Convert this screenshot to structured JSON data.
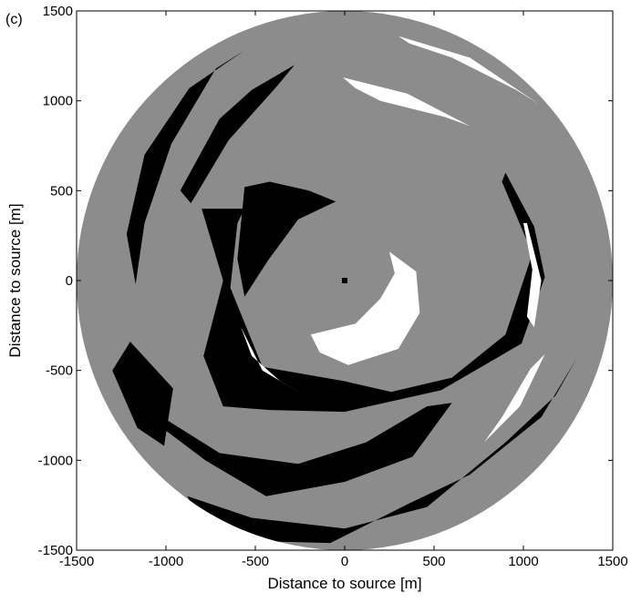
{
  "panel_label": "(c)",
  "colors": {
    "background": "#ffffff",
    "disk": "#8c8c8c",
    "dark_region": "#000000",
    "light_region": "#ffffff"
  },
  "chart_data": {
    "type": "heatmap",
    "title": "",
    "xlabel": "Distance to source [m]",
    "ylabel": "Distance to source [m]",
    "xlim": [
      -1500,
      1500
    ],
    "ylim": [
      -1500,
      1500
    ],
    "xticks": [
      -1500,
      -1000,
      -500,
      0,
      500,
      1000,
      1500
    ],
    "yticks": [
      -1500,
      -1000,
      -500,
      0,
      500,
      1000,
      1500
    ],
    "xtick_labels": [
      "-1500",
      "-1000",
      "-500",
      "0",
      "500",
      "1000",
      "1500"
    ],
    "ytick_labels": [
      "-1500",
      "-1000",
      "-500",
      "0",
      "500",
      "1000",
      "1500"
    ],
    "grid": false,
    "disk": {
      "center": [
        0,
        0
      ],
      "radius": 1500
    },
    "source_marker": [
      0,
      0
    ],
    "regions": [
      {
        "class": "black",
        "points": [
          [
            -1220,
            260
          ],
          [
            -1120,
            700
          ],
          [
            -870,
            1070
          ],
          [
            -560,
            1280
          ],
          [
            -720,
            1180
          ],
          [
            -970,
            760
          ],
          [
            -1120,
            320
          ],
          [
            -1170,
            -20
          ]
        ]
      },
      {
        "class": "black",
        "points": [
          [
            -920,
            500
          ],
          [
            -700,
            900
          ],
          [
            -520,
            1060
          ],
          [
            -280,
            1200
          ],
          [
            -380,
            1080
          ],
          [
            -650,
            780
          ],
          [
            -860,
            430
          ]
        ]
      },
      {
        "class": "black",
        "points": [
          [
            -560,
            520
          ],
          [
            -420,
            550
          ],
          [
            -200,
            500
          ],
          [
            -50,
            440
          ],
          [
            -260,
            340
          ],
          [
            -430,
            110
          ],
          [
            -560,
            -90
          ],
          [
            -600,
            120
          ]
        ]
      },
      {
        "class": "black",
        "points": [
          [
            -680,
            -2e-17
          ],
          [
            -790,
            -420
          ],
          [
            -680,
            -700
          ],
          [
            -420,
            -720
          ],
          [
            0,
            -730
          ],
          [
            540,
            -610
          ],
          [
            990,
            -350
          ],
          [
            1120,
            20
          ],
          [
            1060,
            300
          ],
          [
            900,
            600
          ],
          [
            880,
            550
          ],
          [
            1050,
            150
          ],
          [
            900,
            -300
          ],
          [
            600,
            -540
          ],
          [
            260,
            -620
          ],
          [
            0,
            -560
          ],
          [
            -460,
            -480
          ],
          [
            -640,
            -40
          ],
          [
            -600,
            320
          ],
          [
            -560,
            400
          ],
          [
            -800,
            400
          ]
        ]
      },
      {
        "class": "black",
        "points": [
          [
            -1240,
            -400
          ],
          [
            -1020,
            -760
          ],
          [
            -700,
            -960
          ],
          [
            -260,
            -1020
          ],
          [
            120,
            -900
          ],
          [
            460,
            -700
          ],
          [
            600,
            -680
          ],
          [
            380,
            -980
          ],
          [
            0,
            -1120
          ],
          [
            -440,
            -1200
          ],
          [
            -780,
            -1000
          ],
          [
            -1100,
            -760
          ]
        ]
      },
      {
        "class": "black",
        "points": [
          [
            -880,
            -1200
          ],
          [
            -520,
            -1320
          ],
          [
            0,
            -1380
          ],
          [
            460,
            -1260
          ],
          [
            900,
            -900
          ],
          [
            1180,
            -640
          ],
          [
            1300,
            -430
          ],
          [
            1100,
            -760
          ],
          [
            700,
            -1080
          ],
          [
            360,
            -1240
          ],
          [
            -80,
            -1460
          ],
          [
            -480,
            -1450
          ],
          [
            -820,
            -1320
          ]
        ]
      },
      {
        "class": "black",
        "points": [
          [
            -1300,
            -500
          ],
          [
            -1200,
            -340
          ],
          [
            -960,
            -600
          ],
          [
            -1010,
            -920
          ],
          [
            -1160,
            -820
          ]
        ]
      },
      {
        "class": "white",
        "points": [
          [
            250,
            160
          ],
          [
            400,
            50
          ],
          [
            420,
            -180
          ],
          [
            300,
            -380
          ],
          [
            20,
            -470
          ],
          [
            -140,
            -400
          ],
          [
            -190,
            -300
          ],
          [
            60,
            -240
          ],
          [
            200,
            -100
          ],
          [
            280,
            40
          ]
        ]
      },
      {
        "class": "white",
        "points": [
          [
            -10,
            1130
          ],
          [
            350,
            1040
          ],
          [
            700,
            860
          ],
          [
            560,
            910
          ],
          [
            200,
            1000
          ],
          [
            60,
            1070
          ]
        ]
      },
      {
        "class": "white",
        "points": [
          [
            300,
            1360
          ],
          [
            700,
            1240
          ],
          [
            1090,
            980
          ],
          [
            960,
            1060
          ],
          [
            600,
            1240
          ],
          [
            360,
            1320
          ]
        ]
      },
      {
        "class": "white",
        "points": [
          [
            1020,
            320
          ],
          [
            1100,
            0
          ],
          [
            1060,
            -260
          ],
          [
            1020,
            -200
          ],
          [
            1050,
            60
          ],
          [
            1000,
            320
          ]
        ]
      },
      {
        "class": "white",
        "points": [
          [
            780,
            -900
          ],
          [
            980,
            -700
          ],
          [
            1120,
            -410
          ],
          [
            1040,
            -490
          ],
          [
            880,
            -760
          ]
        ]
      },
      {
        "class": "white",
        "points": [
          [
            -580,
            -260
          ],
          [
            -460,
            -500
          ],
          [
            -190,
            -660
          ],
          [
            -360,
            -560
          ],
          [
            -520,
            -420
          ]
        ]
      }
    ]
  }
}
